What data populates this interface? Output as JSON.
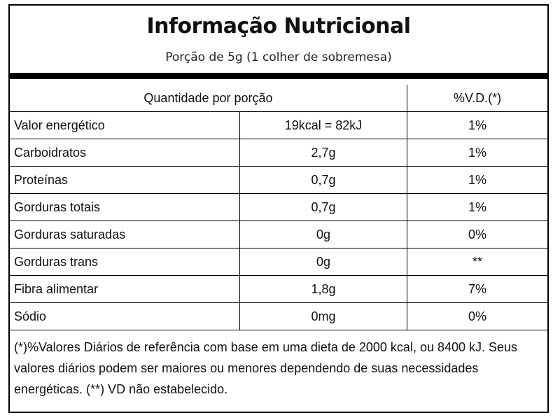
{
  "label": {
    "title": "Informação Nutricional",
    "serving": "Porção de 5g (1 colher de sobremesa)"
  },
  "table": {
    "header": {
      "quantity": "Quantidade por porção",
      "dv": "%V.D.(*)"
    },
    "rows": [
      {
        "name": "Valor energético",
        "amount": "19kcal = 82kJ",
        "dv": "1%"
      },
      {
        "name": "Carboidratos",
        "amount": "2,7g",
        "dv": "1%"
      },
      {
        "name": "Proteínas",
        "amount": "0,7g",
        "dv": "1%"
      },
      {
        "name": "Gorduras totais",
        "amount": "0,7g",
        "dv": "1%"
      },
      {
        "name": "Gorduras saturadas",
        "amount": "0g",
        "dv": "0%"
      },
      {
        "name": "Gorduras trans",
        "amount": "0g",
        "dv": "**"
      },
      {
        "name": "Fibra alimentar",
        "amount": "1,8g",
        "dv": "7%"
      },
      {
        "name": "Sódio",
        "amount": "0mg",
        "dv": "0%"
      }
    ]
  },
  "footnote": " (*)%Valores Diários de referência com base em uma dieta de 2000 kcal, ou 8400 kJ. Seus valores diários podem ser maiores ou menores dependendo de suas necessidades energéticas. (**) VD não estabelecido."
}
